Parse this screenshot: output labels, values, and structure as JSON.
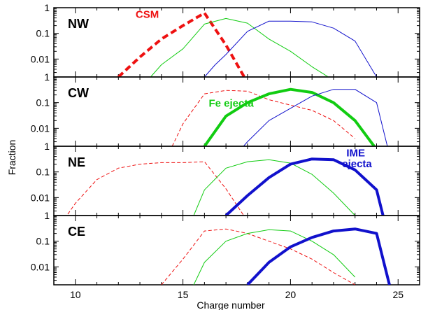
{
  "chart_data": {
    "type": "line",
    "xlabel": "Charge number",
    "ylabel": "Fraction",
    "xlim": [
      9,
      26
    ],
    "ylim": [
      0.002,
      1
    ],
    "yscale": "log",
    "x_ticks": [
      10,
      15,
      20,
      25
    ],
    "y_ticks": [
      1,
      0.1,
      0.01
    ],
    "y_tick_labels": [
      "1",
      "0.1",
      "0.01"
    ],
    "colors": {
      "csm": "#ee1111",
      "fe": "#11cc11",
      "ime": "#1111cc"
    },
    "panels": [
      {
        "label": "NW",
        "annotations": [
          {
            "text": "CSM",
            "color": "#ee1111",
            "x": 12.8,
            "y": 0.4
          }
        ],
        "series": [
          {
            "group": "csm",
            "emphasis": true,
            "x": [
              12,
              13,
              14,
              15,
              16,
              17,
              18
            ],
            "y": [
              0.002,
              0.012,
              0.06,
              0.2,
              0.62,
              0.035,
              0.0012
            ]
          },
          {
            "group": "fe",
            "emphasis": false,
            "x": [
              13.5,
              14,
              15,
              16,
              17,
              18,
              19,
              20,
              21,
              22
            ],
            "y": [
              0.002,
              0.006,
              0.025,
              0.23,
              0.38,
              0.25,
              0.06,
              0.02,
              0.005,
              0.0015
            ]
          },
          {
            "group": "ime",
            "emphasis": false,
            "x": [
              16,
              16.5,
              17,
              18,
              19,
              20,
              21,
              22,
              23,
              24
            ],
            "y": [
              0.002,
              0.006,
              0.015,
              0.12,
              0.3,
              0.3,
              0.28,
              0.16,
              0.05,
              0.002
            ]
          }
        ]
      },
      {
        "label": "CW",
        "annotations": [
          {
            "text": "Fe ejecta",
            "color": "#11cc11",
            "x": 16.2,
            "y": 0.07
          }
        ],
        "series": [
          {
            "group": "csm",
            "emphasis": false,
            "x": [
              14.5,
              15,
              16,
              17,
              18,
              19,
              20,
              21,
              22,
              23
            ],
            "y": [
              0.002,
              0.015,
              0.22,
              0.3,
              0.28,
              0.13,
              0.08,
              0.05,
              0.02,
              0.004
            ]
          },
          {
            "group": "fe",
            "emphasis": true,
            "x": [
              16,
              17,
              18,
              19,
              20,
              21,
              22,
              23,
              24
            ],
            "y": [
              0.002,
              0.03,
              0.1,
              0.22,
              0.33,
              0.25,
              0.1,
              0.02,
              0.0015
            ]
          },
          {
            "group": "ime",
            "emphasis": false,
            "x": [
              17.5,
              18,
              19,
              20,
              21,
              22,
              23,
              24,
              24.5
            ],
            "y": [
              0.001,
              0.003,
              0.02,
              0.06,
              0.18,
              0.33,
              0.33,
              0.1,
              0.002
            ]
          }
        ]
      },
      {
        "label": "NE",
        "annotations": [
          {
            "text": "IME",
            "color": "#1111cc",
            "x": 22.6,
            "y": 0.4
          },
          {
            "text": "ejecta",
            "color": "#1111cc",
            "x": 22.4,
            "y": 0.15
          }
        ],
        "series": [
          {
            "group": "csm",
            "emphasis": false,
            "x": [
              9.5,
              10,
              11,
              12,
              13,
              14,
              15,
              16,
              17,
              18
            ],
            "y": [
              0.0015,
              0.006,
              0.05,
              0.14,
              0.2,
              0.23,
              0.23,
              0.25,
              0.022,
              0.0012
            ]
          },
          {
            "group": "fe",
            "emphasis": false,
            "x": [
              15.5,
              16,
              17,
              18,
              19,
              20,
              21,
              22,
              23
            ],
            "y": [
              0.002,
              0.02,
              0.14,
              0.25,
              0.3,
              0.22,
              0.08,
              0.015,
              0.002
            ]
          },
          {
            "group": "ime",
            "emphasis": true,
            "x": [
              17,
              18,
              19,
              20,
              21,
              22,
              23,
              24,
              24.3
            ],
            "y": [
              0.002,
              0.012,
              0.06,
              0.2,
              0.32,
              0.3,
              0.12,
              0.02,
              0.002
            ]
          }
        ]
      },
      {
        "label": "CE",
        "annotations": [],
        "series": [
          {
            "group": "csm",
            "emphasis": false,
            "x": [
              14,
              15,
              16,
              17,
              18,
              19,
              20,
              21,
              22,
              23
            ],
            "y": [
              0.002,
              0.02,
              0.25,
              0.3,
              0.2,
              0.1,
              0.05,
              0.02,
              0.006,
              0.002
            ]
          },
          {
            "group": "fe",
            "emphasis": false,
            "x": [
              15.5,
              16,
              17,
              18,
              19,
              20,
              21,
              22,
              23
            ],
            "y": [
              0.002,
              0.015,
              0.1,
              0.2,
              0.28,
              0.25,
              0.1,
              0.03,
              0.004
            ]
          },
          {
            "group": "ime",
            "emphasis": true,
            "x": [
              18,
              19,
              20,
              21,
              22,
              23,
              24,
              24.6
            ],
            "y": [
              0.002,
              0.015,
              0.06,
              0.14,
              0.25,
              0.3,
              0.2,
              0.002
            ]
          }
        ]
      }
    ]
  }
}
